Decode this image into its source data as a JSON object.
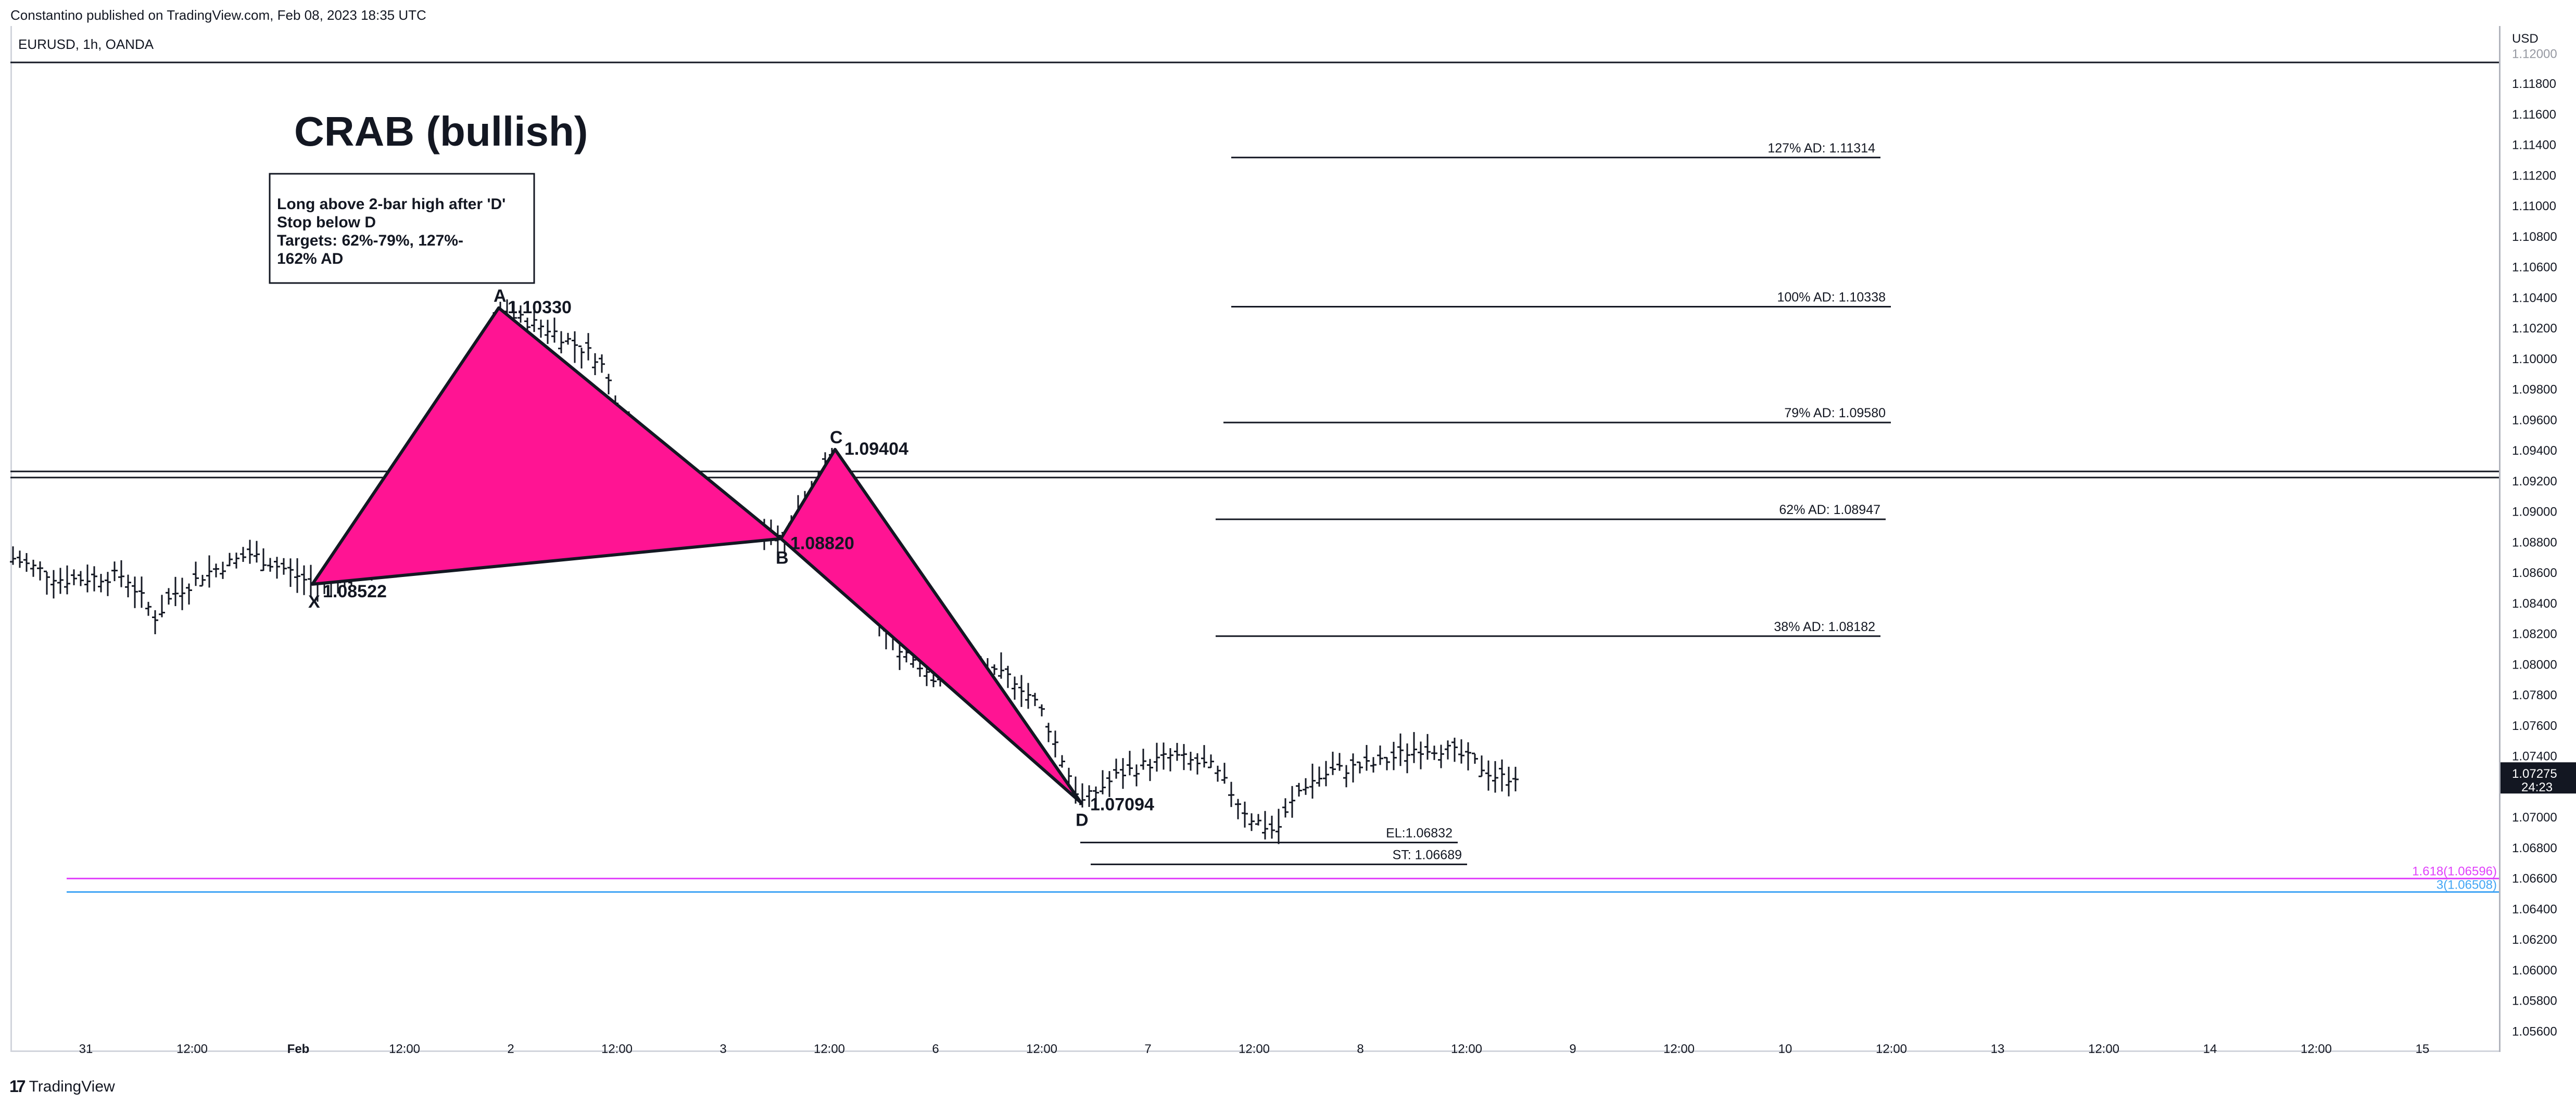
{
  "header": {
    "attribution": "Constantino published on TradingView.com, Feb 08, 2023 18:35 UTC",
    "symbol": "EURUSD, 1h, OANDA"
  },
  "price_axis": {
    "currency": "USD",
    "ticks": [
      "1.11800",
      "1.11600",
      "1.11400",
      "1.11200",
      "1.11000",
      "1.10800",
      "1.10600",
      "1.10400",
      "1.10200",
      "1.10000",
      "1.09800",
      "1.09600",
      "1.09400",
      "1.09200",
      "1.09000",
      "1.08800",
      "1.08600",
      "1.08400",
      "1.08200",
      "1.08000",
      "1.07800",
      "1.07600",
      "1.07400",
      "1.07200",
      "1.07000",
      "1.06800",
      "1.06600",
      "1.06400",
      "1.06200",
      "1.06000",
      "1.05800",
      "1.05600"
    ],
    "top_tick": "1.12000",
    "last_price": "1.07275",
    "countdown": "24:23",
    "fib_labels": [
      {
        "text": "1.618(1.06596)",
        "color": "#e040fb"
      },
      {
        "text": "3(1.06508)",
        "color": "#42a5f5"
      }
    ]
  },
  "time_axis": {
    "ticks": [
      "31",
      "12:00",
      "Feb",
      "12:00",
      "2",
      "12:00",
      "3",
      "12:00",
      "6",
      "12:00",
      "7",
      "12:00",
      "8",
      "12:00",
      "9",
      "12:00",
      "10",
      "12:00",
      "13",
      "12:00",
      "14",
      "12:00",
      "15"
    ]
  },
  "pattern": {
    "title": "CRAB (bullish)",
    "note_lines": [
      "Long above 2-bar high after 'D'",
      "Stop below D",
      "Targets: 62%-79%, 127%-",
      "162% AD"
    ],
    "points": {
      "X": {
        "label": "X",
        "price": "1.08522"
      },
      "A": {
        "label": "A",
        "price": "1.10330"
      },
      "B": {
        "label": "B",
        "price": "1.08820"
      },
      "C": {
        "label": "C",
        "price": "1.09404"
      },
      "D": {
        "label": "D",
        "price": "1.07094"
      }
    },
    "fill_color": "#ff1493",
    "targets": [
      {
        "text": "127% AD: 1.11314",
        "price": 1.11314
      },
      {
        "text": "100% AD: 1.10338",
        "price": 1.10338
      },
      {
        "text": "79% AD: 1.09580",
        "price": 1.0958
      },
      {
        "text": "62% AD: 1.08947",
        "price": 1.08947
      },
      {
        "text": "38% AD: 1.08182",
        "price": 1.08182
      }
    ],
    "entry": {
      "text": "EL:1.06832",
      "price": 1.06832
    },
    "stop": {
      "text": "ST: 1.06689",
      "price": 1.06689
    }
  },
  "chart_data": {
    "type": "ohlc",
    "symbol": "EURUSD",
    "interval": "1h",
    "source": "OANDA",
    "ylim": [
      1.0555,
      1.1205
    ],
    "last_price": 1.07275,
    "horizontal_levels": [
      1.0926,
      1.0922,
      1.06596,
      1.06508
    ],
    "pattern_points": {
      "X": 1.08522,
      "A": 1.1033,
      "B": 1.0882,
      "C": 1.09404,
      "D": 1.07094
    }
  },
  "branding": {
    "logo_text": "TradingView",
    "logo_mark": "17"
  }
}
